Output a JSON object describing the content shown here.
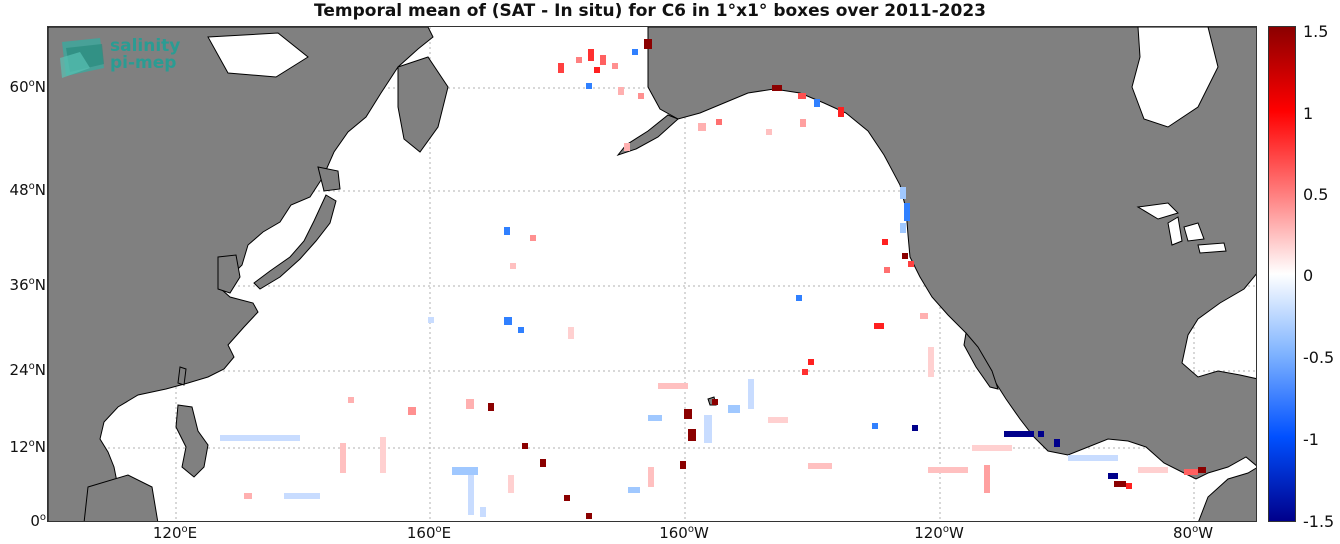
{
  "title": "Temporal mean of (SAT - In situ) for C6 in 1°x1° boxes over 2011-2023",
  "logo": {
    "line1": "salinity",
    "line2": "pi-mep"
  },
  "y_ticks": [
    {
      "deg": "60",
      "hemi": "N"
    },
    {
      "deg": "48",
      "hemi": "N"
    },
    {
      "deg": "36",
      "hemi": "N"
    },
    {
      "deg": "24",
      "hemi": "N"
    },
    {
      "deg": "12",
      "hemi": "N"
    },
    {
      "deg": "0",
      "hemi": ""
    }
  ],
  "x_ticks": [
    {
      "deg": "120",
      "hemi": "E"
    },
    {
      "deg": "160",
      "hemi": "E"
    },
    {
      "deg": "160",
      "hemi": "W"
    },
    {
      "deg": "120",
      "hemi": "W"
    },
    {
      "deg": "80",
      "hemi": "W"
    }
  ],
  "colorbar": {
    "labels": [
      "1.5",
      "1",
      "0.5",
      "0",
      "-0.5",
      "-1",
      "-1.5"
    ],
    "range": [
      -1.5,
      1.5
    ],
    "low_color": "#00008b",
    "mid_color": "#ffffff",
    "high_color": "#8b0000"
  },
  "colors": {
    "land": "#808080",
    "coast": "#000000",
    "grid": "#b0b0b0"
  }
}
